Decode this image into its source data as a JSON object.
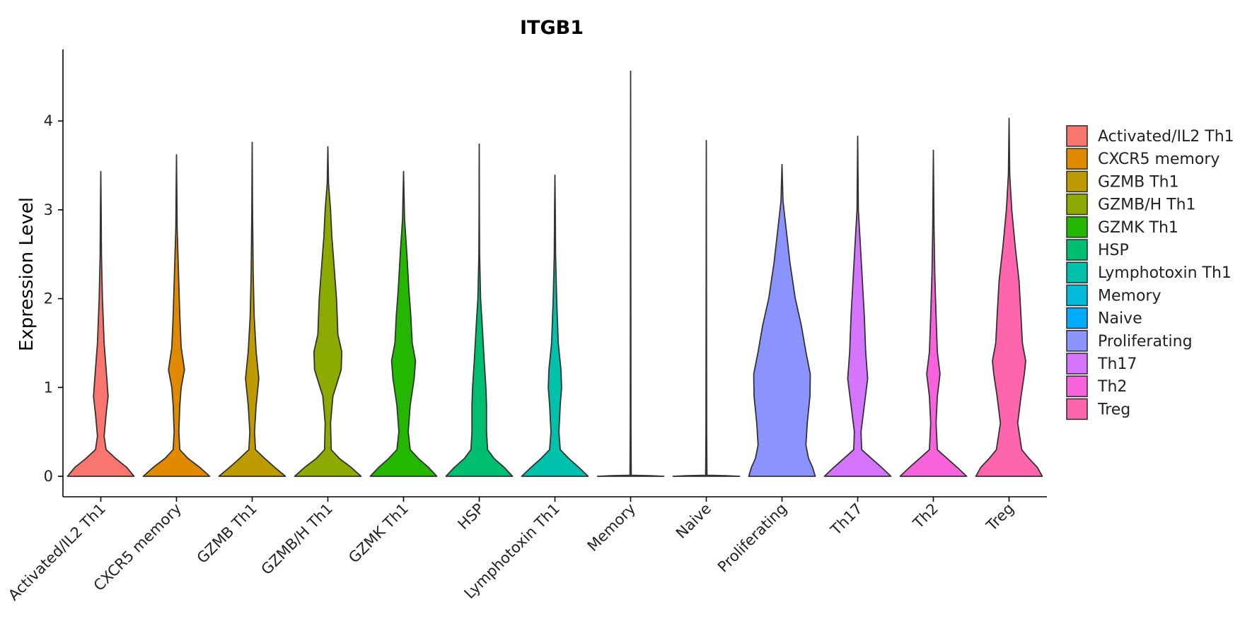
{
  "chart_data": {
    "type": "violin",
    "title": "ITGB1",
    "xlabel": "",
    "ylabel": "Expression Level",
    "ylim": [
      -0.22,
      4.8
    ],
    "yticks": [
      0,
      1,
      2,
      3,
      4
    ],
    "legend_position": "right",
    "categories": [
      "Activated/IL2 Th1",
      "CXCR5 memory",
      "GZMB Th1",
      "GZMB/H Th1",
      "GZMK Th1",
      "HSP",
      "Lymphotoxin Th1",
      "Memory",
      "Naive",
      "Proliferating",
      "Th17",
      "Th2",
      "Treg"
    ],
    "colors": [
      "#F8766D",
      "#E18A00",
      "#BE9C00",
      "#8CAB00",
      "#24B700",
      "#00BE70",
      "#00C1AB",
      "#00BBDA",
      "#00ACFC",
      "#8B93FF",
      "#D575FE",
      "#F962DD",
      "#FF65AC"
    ],
    "violins": [
      {
        "name": "Activated/IL2 Th1",
        "max": 3.43,
        "profile": [
          [
            0,
            1.0
          ],
          [
            0.1,
            0.78
          ],
          [
            0.2,
            0.45
          ],
          [
            0.3,
            0.16
          ],
          [
            0.45,
            0.1
          ],
          [
            0.7,
            0.16
          ],
          [
            0.9,
            0.22
          ],
          [
            1.1,
            0.18
          ],
          [
            1.5,
            0.1
          ],
          [
            2.0,
            0.05
          ],
          [
            2.5,
            0.02
          ],
          [
            3.0,
            0.01
          ],
          [
            3.43,
            0.0
          ]
        ]
      },
      {
        "name": "CXCR5 memory",
        "max": 3.62,
        "profile": [
          [
            0,
            1.0
          ],
          [
            0.1,
            0.7
          ],
          [
            0.2,
            0.35
          ],
          [
            0.3,
            0.1
          ],
          [
            0.5,
            0.07
          ],
          [
            0.8,
            0.1
          ],
          [
            1.0,
            0.14
          ],
          [
            1.2,
            0.24
          ],
          [
            1.45,
            0.14
          ],
          [
            1.8,
            0.1
          ],
          [
            2.3,
            0.06
          ],
          [
            2.8,
            0.02
          ],
          [
            3.2,
            0.01
          ],
          [
            3.62,
            0.0
          ]
        ]
      },
      {
        "name": "GZMB Th1",
        "max": 3.76,
        "profile": [
          [
            0,
            1.0
          ],
          [
            0.1,
            0.68
          ],
          [
            0.2,
            0.38
          ],
          [
            0.3,
            0.1
          ],
          [
            0.5,
            0.07
          ],
          [
            0.8,
            0.12
          ],
          [
            1.1,
            0.2
          ],
          [
            1.4,
            0.12
          ],
          [
            1.8,
            0.06
          ],
          [
            2.3,
            0.03
          ],
          [
            3.0,
            0.01
          ],
          [
            3.76,
            0.0
          ]
        ]
      },
      {
        "name": "GZMB/H Th1",
        "max": 3.71,
        "profile": [
          [
            0,
            1.0
          ],
          [
            0.1,
            0.7
          ],
          [
            0.2,
            0.35
          ],
          [
            0.3,
            0.1
          ],
          [
            0.6,
            0.08
          ],
          [
            0.9,
            0.15
          ],
          [
            1.2,
            0.4
          ],
          [
            1.4,
            0.42
          ],
          [
            1.6,
            0.3
          ],
          [
            1.8,
            0.28
          ],
          [
            2.0,
            0.26
          ],
          [
            2.3,
            0.2
          ],
          [
            2.7,
            0.12
          ],
          [
            3.0,
            0.08
          ],
          [
            3.3,
            0.02
          ],
          [
            3.71,
            0.0
          ]
        ]
      },
      {
        "name": "GZMK Th1",
        "max": 3.43,
        "profile": [
          [
            0,
            1.0
          ],
          [
            0.1,
            0.75
          ],
          [
            0.2,
            0.45
          ],
          [
            0.3,
            0.2
          ],
          [
            0.5,
            0.14
          ],
          [
            0.8,
            0.2
          ],
          [
            1.1,
            0.32
          ],
          [
            1.3,
            0.36
          ],
          [
            1.5,
            0.26
          ],
          [
            1.8,
            0.22
          ],
          [
            2.1,
            0.16
          ],
          [
            2.5,
            0.1
          ],
          [
            2.9,
            0.03
          ],
          [
            3.43,
            0.0
          ]
        ]
      },
      {
        "name": "HSP",
        "max": 3.74,
        "profile": [
          [
            0,
            1.0
          ],
          [
            0.1,
            0.75
          ],
          [
            0.2,
            0.45
          ],
          [
            0.3,
            0.25
          ],
          [
            0.5,
            0.22
          ],
          [
            0.8,
            0.22
          ],
          [
            1.0,
            0.2
          ],
          [
            1.3,
            0.15
          ],
          [
            1.7,
            0.09
          ],
          [
            2.0,
            0.04
          ],
          [
            2.5,
            0.01
          ],
          [
            3.0,
            0.005
          ],
          [
            3.74,
            0.0
          ]
        ]
      },
      {
        "name": "Lymphotoxin Th1",
        "max": 3.39,
        "profile": [
          [
            0,
            1.0
          ],
          [
            0.1,
            0.72
          ],
          [
            0.2,
            0.42
          ],
          [
            0.3,
            0.16
          ],
          [
            0.5,
            0.12
          ],
          [
            0.8,
            0.16
          ],
          [
            1.0,
            0.2
          ],
          [
            1.2,
            0.18
          ],
          [
            1.5,
            0.1
          ],
          [
            2.0,
            0.05
          ],
          [
            2.5,
            0.02
          ],
          [
            3.0,
            0.01
          ],
          [
            3.39,
            0.0
          ]
        ]
      },
      {
        "name": "Memory",
        "max": 4.56,
        "profile": [
          [
            0,
            1.0
          ],
          [
            0.006,
            0.6
          ],
          [
            0.012,
            0.02
          ],
          [
            0.5,
            0.01
          ],
          [
            4.56,
            0.0
          ]
        ]
      },
      {
        "name": "Naive",
        "max": 3.78,
        "profile": [
          [
            0,
            1.0
          ],
          [
            0.006,
            0.6
          ],
          [
            0.012,
            0.02
          ],
          [
            0.5,
            0.01
          ],
          [
            3.78,
            0.0
          ]
        ]
      },
      {
        "name": "Proliferating",
        "max": 3.51,
        "profile": [
          [
            0,
            1.0
          ],
          [
            0.1,
            0.92
          ],
          [
            0.2,
            0.8
          ],
          [
            0.35,
            0.72
          ],
          [
            0.6,
            0.76
          ],
          [
            0.9,
            0.84
          ],
          [
            1.15,
            0.85
          ],
          [
            1.4,
            0.72
          ],
          [
            1.7,
            0.58
          ],
          [
            2.0,
            0.4
          ],
          [
            2.4,
            0.24
          ],
          [
            2.8,
            0.12
          ],
          [
            3.1,
            0.03
          ],
          [
            3.51,
            0.0
          ]
        ]
      },
      {
        "name": "Th17",
        "max": 3.83,
        "profile": [
          [
            0,
            1.0
          ],
          [
            0.1,
            0.72
          ],
          [
            0.2,
            0.42
          ],
          [
            0.3,
            0.12
          ],
          [
            0.5,
            0.1
          ],
          [
            0.8,
            0.2
          ],
          [
            1.1,
            0.3
          ],
          [
            1.4,
            0.24
          ],
          [
            1.8,
            0.2
          ],
          [
            2.2,
            0.14
          ],
          [
            2.6,
            0.08
          ],
          [
            3.0,
            0.02
          ],
          [
            3.83,
            0.0
          ]
        ]
      },
      {
        "name": "Th2",
        "max": 3.67,
        "profile": [
          [
            0,
            1.0
          ],
          [
            0.1,
            0.72
          ],
          [
            0.2,
            0.42
          ],
          [
            0.3,
            0.12
          ],
          [
            0.6,
            0.08
          ],
          [
            0.9,
            0.12
          ],
          [
            1.15,
            0.2
          ],
          [
            1.4,
            0.12
          ],
          [
            1.8,
            0.08
          ],
          [
            2.3,
            0.04
          ],
          [
            2.8,
            0.02
          ],
          [
            3.2,
            0.01
          ],
          [
            3.67,
            0.0
          ]
        ]
      },
      {
        "name": "Treg",
        "max": 4.03,
        "profile": [
          [
            0,
            1.0
          ],
          [
            0.1,
            0.85
          ],
          [
            0.2,
            0.6
          ],
          [
            0.3,
            0.38
          ],
          [
            0.6,
            0.26
          ],
          [
            0.9,
            0.36
          ],
          [
            1.15,
            0.46
          ],
          [
            1.3,
            0.5
          ],
          [
            1.5,
            0.4
          ],
          [
            1.8,
            0.36
          ],
          [
            2.2,
            0.3
          ],
          [
            2.6,
            0.18
          ],
          [
            3.0,
            0.08
          ],
          [
            3.4,
            0.02
          ],
          [
            4.03,
            0.0
          ]
        ]
      }
    ]
  }
}
